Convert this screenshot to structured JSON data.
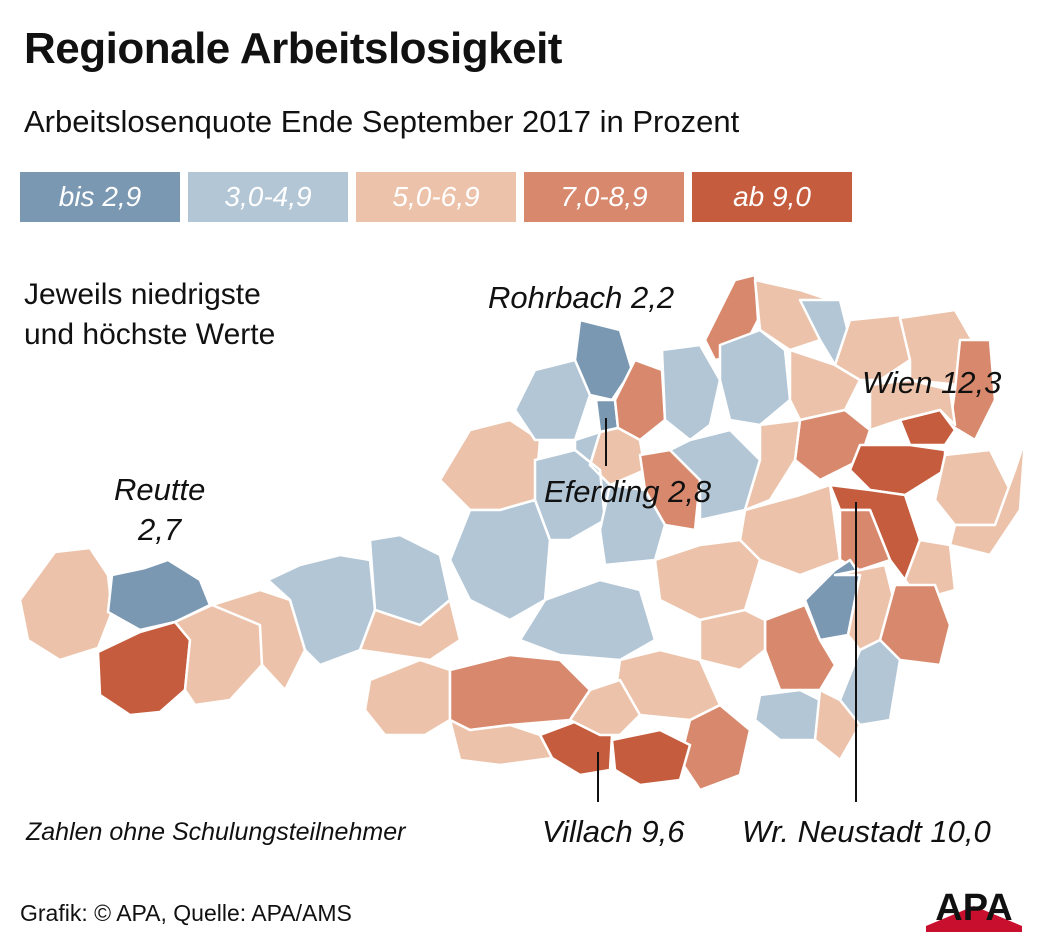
{
  "title": "Regionale Arbeitslosigkeit",
  "subtitle": "Arbeitslosenquote Ende September 2017 in Prozent",
  "legend": [
    {
      "label": "bis 2,9",
      "color": "#7a98b2"
    },
    {
      "label": "3,0-4,9",
      "color": "#b3c6d6"
    },
    {
      "label": "5,0-6,9",
      "color": "#ecc3aa"
    },
    {
      "label": "7,0-8,9",
      "color": "#d8896d"
    },
    {
      "label": "ab 9,0",
      "color": "#c55c3d"
    }
  ],
  "note_lines": [
    "Jeweils niedrigste",
    "und höchste Werte"
  ],
  "labels": {
    "rohrbach": "Rohrbach 2,2",
    "wien": "Wien 12,3",
    "reutte_name": "Reutte",
    "reutte_value": "2,7",
    "eferding": "Eferding 2,8",
    "villach": "Villach 9,6",
    "wr_neustadt": "Wr. Neustadt 10,0"
  },
  "footnote": "Zahlen ohne Schulungsteilnehmer",
  "credit": "Grafik: © APA, Quelle: APA/AMS",
  "logo_text": "APA",
  "colors": {
    "border": "#ffffff",
    "leader": "#111111",
    "logo": "#111111",
    "logo_accent": "#c8102e"
  }
}
